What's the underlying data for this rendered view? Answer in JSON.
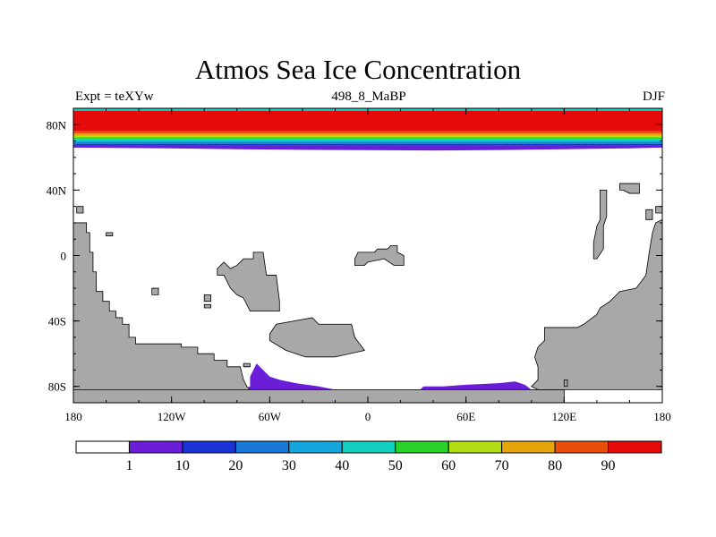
{
  "title": "Atmos Sea Ice Concentration",
  "subtitle_left": "Expt = teXYw",
  "subtitle_center": "498_8_MaBP",
  "subtitle_right": "DJF",
  "lat_ticks": [
    {
      "value": 80,
      "label": "80N"
    },
    {
      "value": 40,
      "label": "40N"
    },
    {
      "value": 0,
      "label": "0"
    },
    {
      "value": -40,
      "label": "40S"
    },
    {
      "value": -80,
      "label": "80S"
    }
  ],
  "lon_ticks": [
    {
      "value": -180,
      "label": "180"
    },
    {
      "value": -120,
      "label": "120W"
    },
    {
      "value": -60,
      "label": "60W"
    },
    {
      "value": 0,
      "label": "0"
    },
    {
      "value": 60,
      "label": "60E"
    },
    {
      "value": 120,
      "label": "120E"
    },
    {
      "value": 180,
      "label": "180"
    }
  ],
  "lat_range": [
    -90,
    90
  ],
  "lon_range": [
    -180,
    180
  ],
  "colorbar": {
    "colors": [
      "#ffffff",
      "#6a1ed8",
      "#1a32d6",
      "#1a78d6",
      "#14a6dc",
      "#12d0c0",
      "#28d228",
      "#b4de14",
      "#e6a50a",
      "#e8500a",
      "#e60a0a"
    ],
    "labels": [
      "1",
      "10",
      "20",
      "30",
      "40",
      "50",
      "60",
      "70",
      "80",
      "90"
    ]
  },
  "land_color": "#a8a8a8",
  "arctic_ice_bands": [
    {
      "lat_top": 90,
      "lat_bottom": 88.5,
      "level": 5
    },
    {
      "lat_top": 88.5,
      "lat_bottom": 76,
      "level": 10
    },
    {
      "lat_top": 76,
      "lat_bottom": 74.5,
      "level": 9
    },
    {
      "lat_top": 74.5,
      "lat_bottom": 73.3,
      "level": 8
    },
    {
      "lat_top": 73.3,
      "lat_bottom": 72.2,
      "level": 7
    },
    {
      "lat_top": 72.2,
      "lat_bottom": 71.2,
      "level": 6
    },
    {
      "lat_top": 71.2,
      "lat_bottom": 70.2,
      "level": 5
    },
    {
      "lat_top": 70.2,
      "lat_bottom": 69.2,
      "level": 4
    },
    {
      "lat_top": 69.2,
      "lat_bottom": 68.2,
      "level": 3
    },
    {
      "lat_top": 68.2,
      "lat_bottom": 67.2,
      "level": 2
    }
  ],
  "land_polygons": [
    [
      [
        -180,
        20
      ],
      [
        -172,
        20
      ],
      [
        -172,
        14
      ],
      [
        -170,
        14
      ],
      [
        -170,
        2
      ],
      [
        -168,
        2
      ],
      [
        -168,
        -10
      ],
      [
        -166,
        -10
      ],
      [
        -166,
        -22
      ],
      [
        -162,
        -22
      ],
      [
        -162,
        -28
      ],
      [
        -158,
        -28
      ],
      [
        -158,
        -34
      ],
      [
        -154,
        -34
      ],
      [
        -154,
        -38
      ],
      [
        -150,
        -38
      ],
      [
        -150,
        -42
      ],
      [
        -146,
        -42
      ],
      [
        -146,
        -50
      ],
      [
        -142,
        -50
      ],
      [
        -142,
        -54
      ],
      [
        -114,
        -54
      ],
      [
        -114,
        -56
      ],
      [
        -104,
        -56
      ],
      [
        -104,
        -60
      ],
      [
        -94,
        -60
      ],
      [
        -94,
        -64
      ],
      [
        -86,
        -64
      ],
      [
        -86,
        -68
      ],
      [
        -78,
        -68
      ],
      [
        -76,
        -76
      ],
      [
        -74,
        -80
      ],
      [
        -72,
        -82
      ],
      [
        -130,
        -82
      ],
      [
        -180,
        -82
      ]
    ],
    [
      [
        -180,
        -82
      ],
      [
        -72,
        -82
      ],
      [
        -20,
        -82
      ],
      [
        20,
        -82
      ],
      [
        100,
        -82
      ],
      [
        120,
        -82
      ],
      [
        120,
        -90
      ],
      [
        -180,
        -90
      ]
    ],
    [
      [
        100,
        -80
      ],
      [
        104,
        -76
      ],
      [
        104,
        -68
      ],
      [
        102,
        -62
      ],
      [
        104,
        -56
      ],
      [
        108,
        -52
      ],
      [
        108,
        -44
      ],
      [
        128,
        -44
      ],
      [
        132,
        -42
      ],
      [
        140,
        -36
      ],
      [
        142,
        -32
      ],
      [
        148,
        -28
      ],
      [
        154,
        -22
      ],
      [
        164,
        -20
      ],
      [
        170,
        -12
      ],
      [
        172,
        2
      ],
      [
        174,
        14
      ],
      [
        176,
        20
      ],
      [
        180,
        22
      ],
      [
        180,
        -82
      ],
      [
        120,
        -82
      ],
      [
        104,
        -82
      ]
    ],
    [
      [
        -92,
        -8
      ],
      [
        -88,
        -4
      ],
      [
        -84,
        -8
      ],
      [
        -80,
        -6
      ],
      [
        -76,
        -2
      ],
      [
        -70,
        -2
      ],
      [
        -70,
        2
      ],
      [
        -64,
        2
      ],
      [
        -62,
        -12
      ],
      [
        -56,
        -12
      ],
      [
        -54,
        -28
      ],
      [
        -54,
        -34
      ],
      [
        -72,
        -34
      ],
      [
        -76,
        -26
      ],
      [
        -80,
        -24
      ],
      [
        -84,
        -20
      ],
      [
        -88,
        -12
      ],
      [
        -92,
        -12
      ]
    ],
    [
      [
        -60,
        -48
      ],
      [
        -56,
        -42
      ],
      [
        -34,
        -38
      ],
      [
        -30,
        -42
      ],
      [
        -22,
        -42
      ],
      [
        -10,
        -42
      ],
      [
        -8,
        -50
      ],
      [
        -2,
        -58
      ],
      [
        -20,
        -62
      ],
      [
        -38,
        -62
      ],
      [
        -50,
        -58
      ],
      [
        -60,
        -52
      ]
    ],
    [
      [
        -8,
        -2
      ],
      [
        -6,
        2
      ],
      [
        4,
        2
      ],
      [
        6,
        4
      ],
      [
        12,
        4
      ],
      [
        14,
        6
      ],
      [
        18,
        6
      ],
      [
        18,
        2
      ],
      [
        22,
        0
      ],
      [
        22,
        -6
      ],
      [
        16,
        -6
      ],
      [
        10,
        -2
      ],
      [
        0,
        -4
      ],
      [
        -2,
        -6
      ],
      [
        -8,
        -6
      ]
    ],
    [
      [
        -178,
        30
      ],
      [
        -174,
        30
      ],
      [
        -174,
        26
      ],
      [
        -178,
        26
      ]
    ],
    [
      [
        -160,
        14
      ],
      [
        -156,
        14
      ],
      [
        -156,
        12
      ],
      [
        -160,
        12
      ]
    ],
    [
      [
        -132,
        -20
      ],
      [
        -128,
        -20
      ],
      [
        -128,
        -24
      ],
      [
        -132,
        -24
      ]
    ],
    [
      [
        -100,
        -24
      ],
      [
        -96,
        -24
      ],
      [
        -96,
        -28
      ],
      [
        -100,
        -28
      ]
    ],
    [
      [
        -100,
        -30
      ],
      [
        -96,
        -30
      ],
      [
        -96,
        -32
      ],
      [
        -100,
        -32
      ]
    ],
    [
      [
        -76,
        -66
      ],
      [
        -72,
        -66
      ],
      [
        -72,
        -68
      ],
      [
        -76,
        -68
      ]
    ],
    [
      [
        138,
        -2
      ],
      [
        140,
        -2
      ],
      [
        144,
        4
      ],
      [
        144,
        18
      ],
      [
        146,
        24
      ],
      [
        146,
        40
      ],
      [
        142,
        40
      ],
      [
        142,
        22
      ],
      [
        140,
        18
      ],
      [
        138,
        8
      ]
    ],
    [
      [
        154,
        44
      ],
      [
        166,
        44
      ],
      [
        166,
        38
      ],
      [
        160,
        38
      ],
      [
        156,
        40
      ],
      [
        154,
        40
      ]
    ],
    [
      [
        170,
        28
      ],
      [
        174,
        28
      ],
      [
        174,
        22
      ],
      [
        170,
        22
      ]
    ],
    [
      [
        176,
        30
      ],
      [
        180,
        30
      ],
      [
        180,
        26
      ],
      [
        176,
        26
      ]
    ],
    [
      [
        120,
        -76
      ],
      [
        122,
        -76
      ],
      [
        122,
        -80
      ],
      [
        120,
        -80
      ]
    ]
  ],
  "antarctic_ice": [
    [
      [
        -68,
        -66
      ],
      [
        -64,
        -70
      ],
      [
        -60,
        -74
      ],
      [
        -54,
        -76
      ],
      [
        -44,
        -78
      ],
      [
        -30,
        -80
      ],
      [
        -20,
        -82
      ],
      [
        -76,
        -82
      ],
      [
        -72,
        -80
      ],
      [
        -72,
        -74
      ],
      [
        -70,
        -70
      ]
    ],
    [
      [
        32,
        -82
      ],
      [
        34,
        -80
      ],
      [
        46,
        -80
      ],
      [
        60,
        -79
      ],
      [
        80,
        -78
      ],
      [
        90,
        -77
      ],
      [
        96,
        -79
      ],
      [
        100,
        -82
      ]
    ]
  ]
}
